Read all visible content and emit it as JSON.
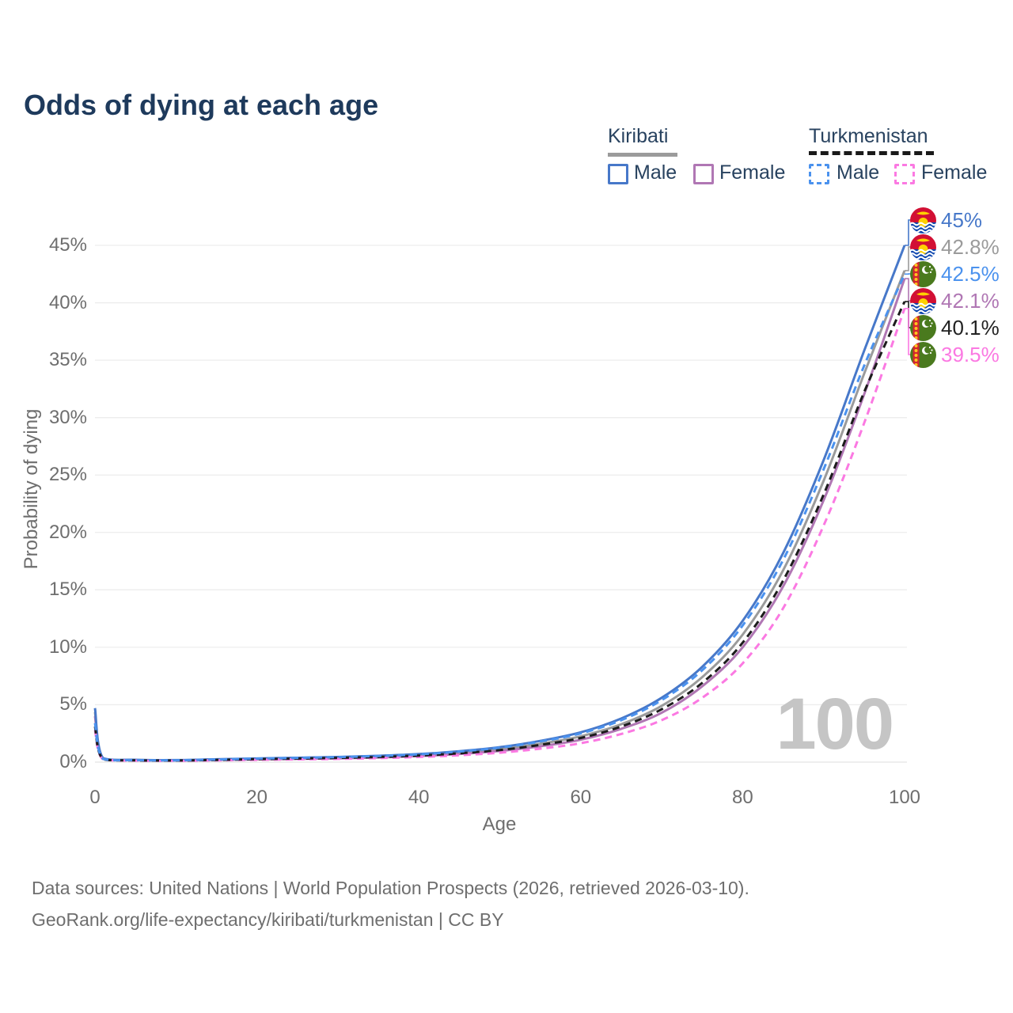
{
  "title": "Odds of dying at each age",
  "legend": {
    "groups": [
      {
        "country": "Kiribati",
        "line_style": "solid",
        "underline_color": "#9b9b9b",
        "items": [
          {
            "label": "Male",
            "color": "#4778c9",
            "dashed": false
          },
          {
            "label": "Female",
            "color": "#b077b4",
            "dashed": false
          }
        ]
      },
      {
        "country": "Turkmenistan",
        "line_style": "dashed",
        "underline_color": "#1a1a1a",
        "items": [
          {
            "label": "Male",
            "color": "#4b92ee",
            "dashed": true
          },
          {
            "label": "Female",
            "color": "#fb79e2",
            "dashed": true
          }
        ]
      }
    ]
  },
  "watermark": "100",
  "footer": {
    "line1": "Data sources: United Nations | World Population Prospects (2026, retrieved 2026-03-10).",
    "line2": "GeoRank.org/life-expectancy/kiribati/turkmenistan | CC BY"
  },
  "chart_data": {
    "type": "line",
    "title": "Odds of dying at each age",
    "xlabel": "Age",
    "ylabel": "Probability of dying",
    "xlim": [
      0,
      100
    ],
    "ylim_pct": [
      0,
      45
    ],
    "x_ticks": [
      0,
      20,
      40,
      60,
      80,
      100
    ],
    "y_ticks": [
      0,
      5,
      10,
      15,
      20,
      25,
      30,
      35,
      40,
      45
    ],
    "y_tick_suffix": "%",
    "grid": true,
    "legend_position": "top-right",
    "x": [
      0,
      1,
      5,
      10,
      15,
      20,
      25,
      30,
      35,
      40,
      45,
      50,
      55,
      60,
      65,
      70,
      75,
      80,
      85,
      90,
      95,
      100
    ],
    "series": [
      {
        "name": "Kiribati Male",
        "country": "kiribati",
        "color": "#4778c9",
        "dashed": false,
        "values": [
          4.7,
          0.35,
          0.2,
          0.18,
          0.25,
          0.32,
          0.38,
          0.45,
          0.55,
          0.7,
          0.95,
          1.3,
          1.85,
          2.6,
          3.8,
          5.6,
          8.3,
          12.3,
          18.2,
          26.3,
          35.8,
          45.0
        ]
      },
      {
        "name": "Kiribati Both sexes",
        "country": "kiribati",
        "color": "#9b9b9b",
        "dashed": false,
        "values": [
          4.35,
          0.33,
          0.19,
          0.17,
          0.22,
          0.28,
          0.33,
          0.39,
          0.48,
          0.62,
          0.83,
          1.12,
          1.6,
          2.25,
          3.3,
          4.9,
          7.4,
          11.1,
          16.7,
          24.5,
          33.8,
          42.8
        ]
      },
      {
        "name": "Turkmenistan Male",
        "country": "turkmenistan",
        "color": "#4b92ee",
        "dashed": true,
        "values": [
          3.4,
          0.28,
          0.17,
          0.16,
          0.23,
          0.31,
          0.37,
          0.44,
          0.54,
          0.68,
          0.92,
          1.26,
          1.8,
          2.5,
          3.65,
          5.4,
          8.0,
          11.9,
          17.6,
          25.5,
          34.5,
          42.5
        ]
      },
      {
        "name": "Kiribati Female",
        "country": "kiribati",
        "color": "#b077b4",
        "dashed": false,
        "values": [
          4.0,
          0.3,
          0.17,
          0.15,
          0.19,
          0.24,
          0.28,
          0.33,
          0.41,
          0.53,
          0.71,
          0.97,
          1.38,
          1.95,
          2.9,
          4.3,
          6.6,
          10.0,
          15.3,
          22.8,
          32.0,
          42.1
        ]
      },
      {
        "name": "Turkmenistan Both sexes",
        "country": "turkmenistan",
        "color": "#1c1c1c",
        "dashed": true,
        "values": [
          3.1,
          0.26,
          0.15,
          0.14,
          0.19,
          0.26,
          0.31,
          0.37,
          0.45,
          0.57,
          0.77,
          1.05,
          1.5,
          2.1,
          3.1,
          4.6,
          6.9,
          10.4,
          15.8,
          23.3,
          32.2,
          40.1
        ]
      },
      {
        "name": "Turkmenistan Female",
        "country": "turkmenistan",
        "color": "#fb79e2",
        "dashed": true,
        "values": [
          2.8,
          0.24,
          0.13,
          0.12,
          0.15,
          0.2,
          0.24,
          0.28,
          0.35,
          0.45,
          0.6,
          0.82,
          1.17,
          1.65,
          2.45,
          3.65,
          5.6,
          8.6,
          13.4,
          20.6,
          29.5,
          39.5
        ]
      }
    ],
    "end_labels": [
      {
        "flag": "kiribati",
        "text": "45%",
        "color": "#4778c9"
      },
      {
        "flag": "kiribati",
        "text": "42.8%",
        "color": "#9b9b9b"
      },
      {
        "flag": "turkmenistan",
        "text": "42.5%",
        "color": "#4b92ee"
      },
      {
        "flag": "kiribati",
        "text": "42.1%",
        "color": "#b077b4"
      },
      {
        "flag": "turkmenistan",
        "text": "40.1%",
        "color": "#222222"
      },
      {
        "flag": "turkmenistan",
        "text": "39.5%",
        "color": "#fb79e2"
      }
    ]
  }
}
